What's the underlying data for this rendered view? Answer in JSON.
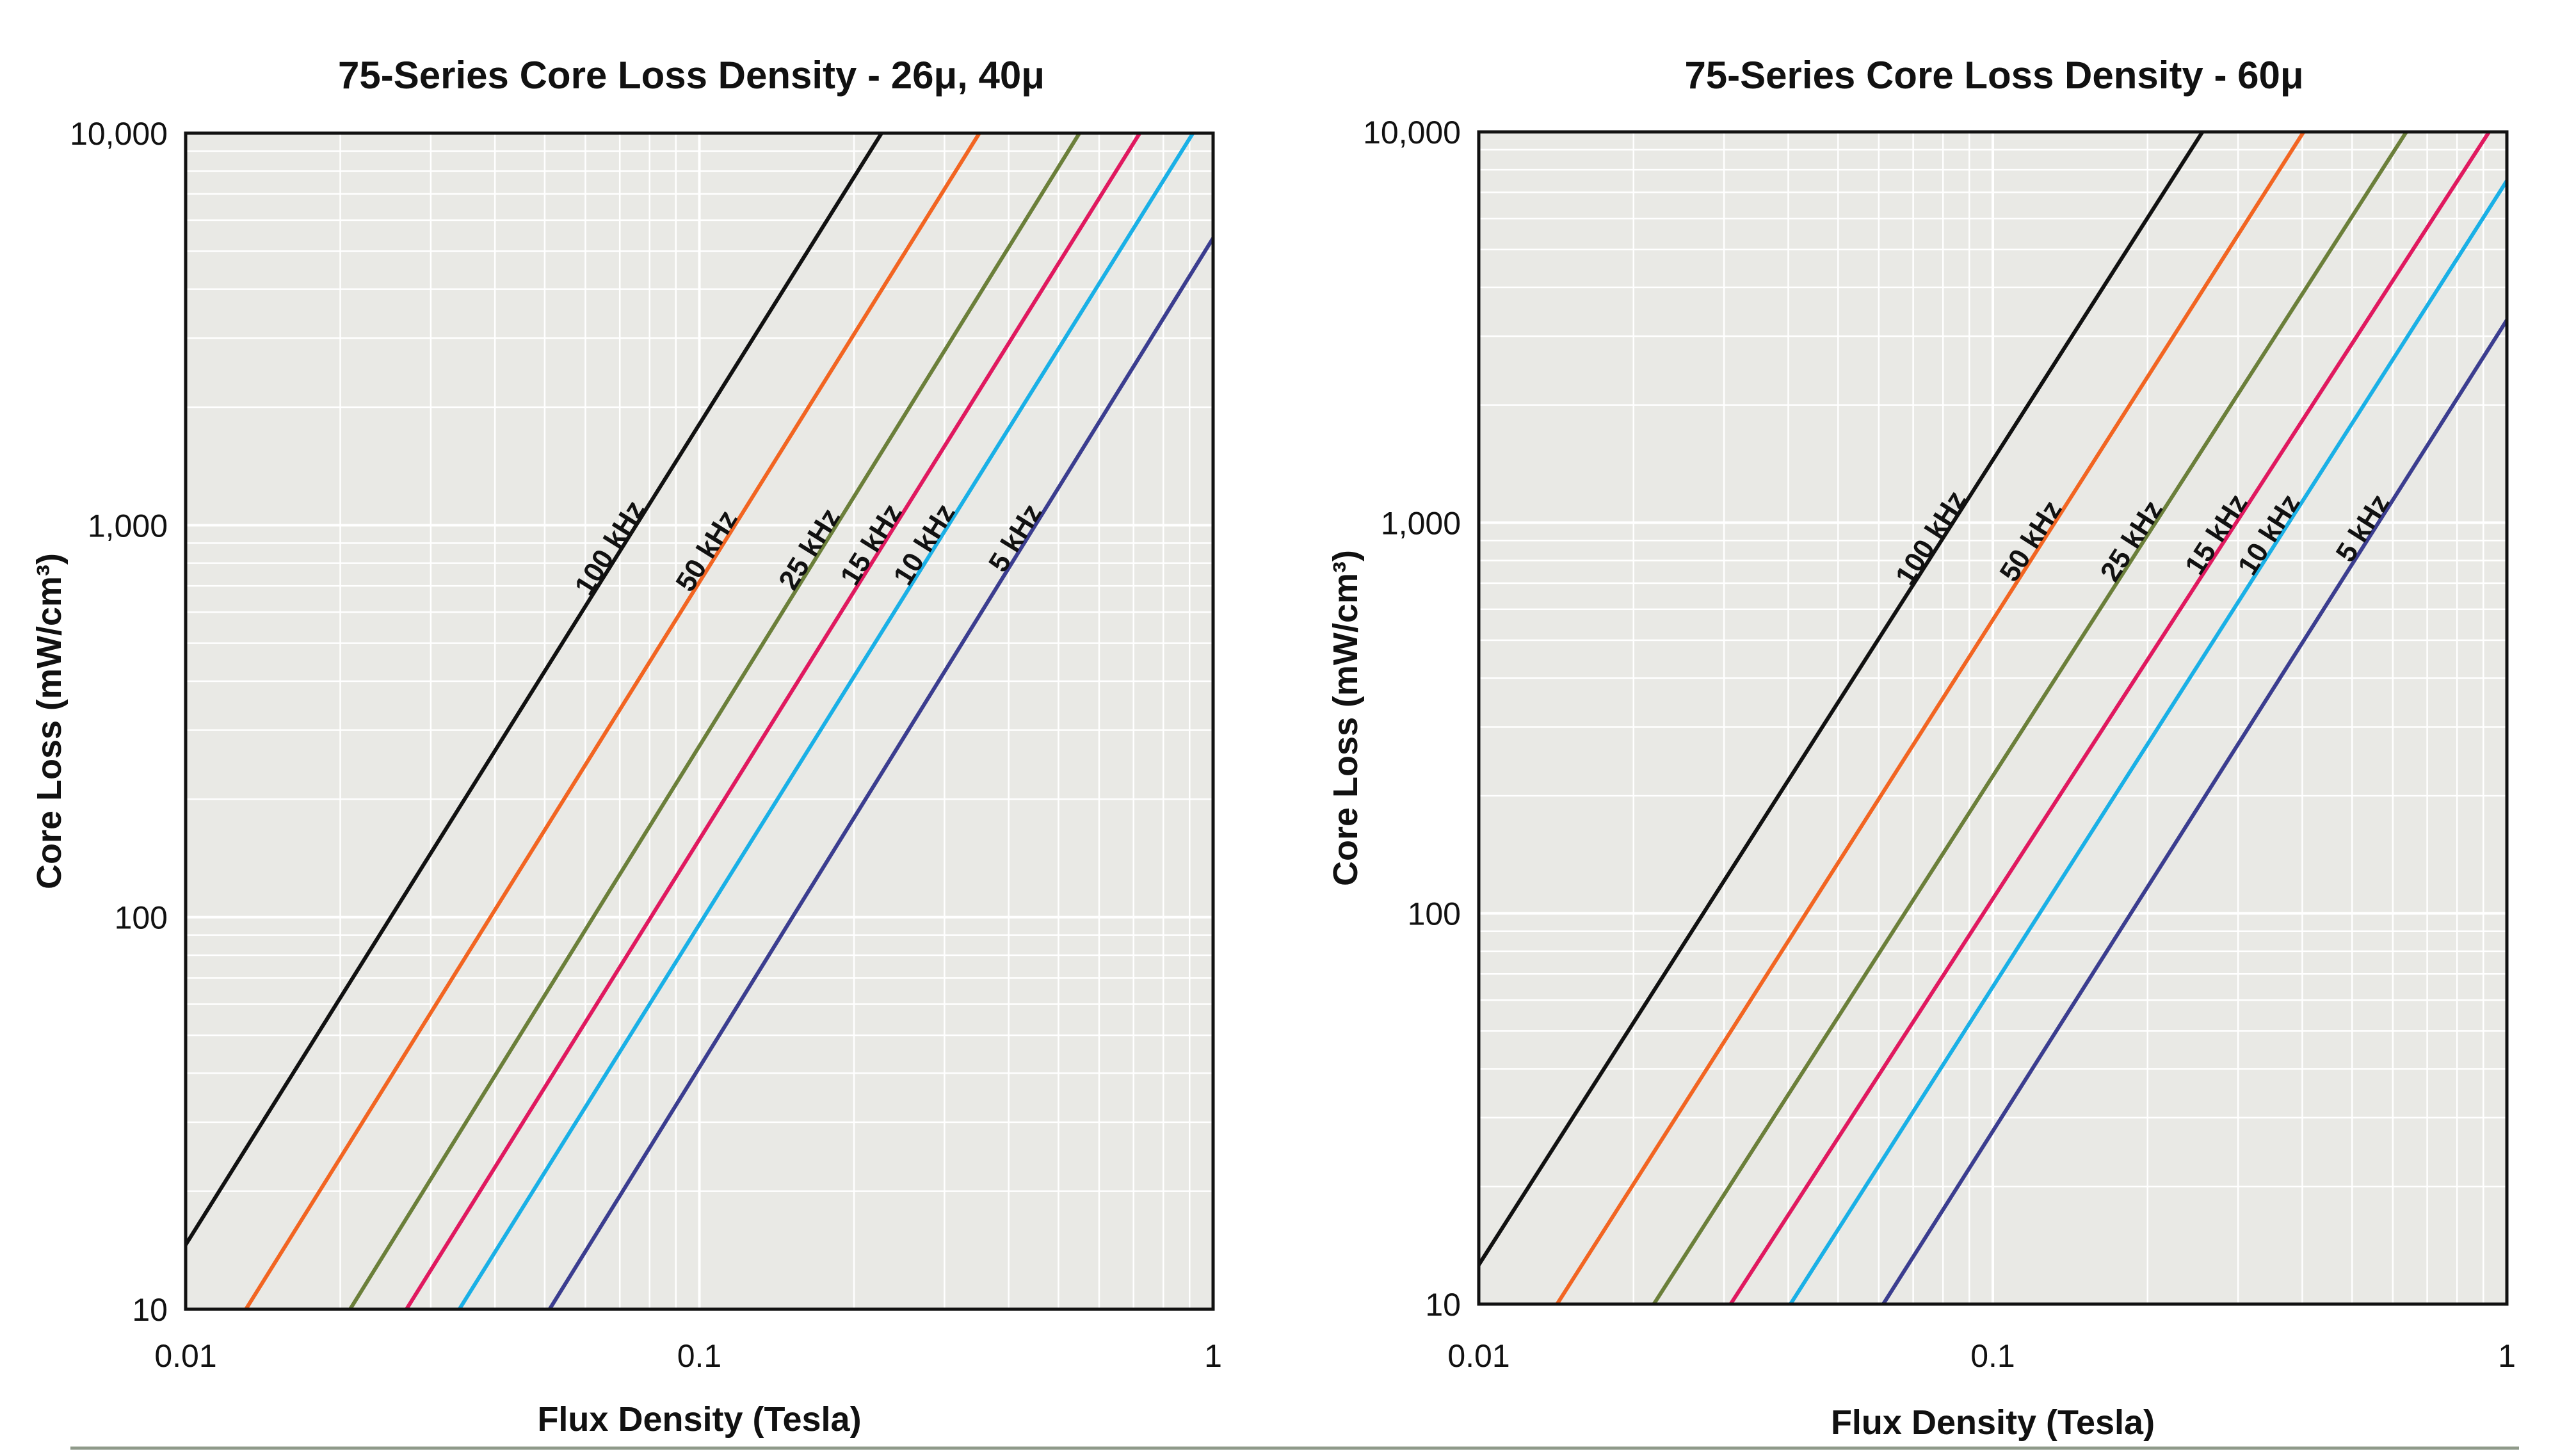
{
  "chart_data": [
    {
      "type": "line",
      "title": "75-Series Core Loss Density - 26μ, 40μ",
      "xlabel": "Flux Density (Tesla)",
      "ylabel": "Core Loss (mW/cm³)",
      "x_scale": "log",
      "y_scale": "log",
      "xlim": [
        0.01,
        1
      ],
      "ylim": [
        10,
        10000
      ],
      "x_ticks": [
        "0.01",
        "0.1",
        "1"
      ],
      "y_ticks": [
        "10",
        "100",
        "1,000",
        "10,000"
      ],
      "grid": true,
      "series": [
        {
          "name": "100 kHz",
          "color": "#111111",
          "points": [
            [
              0.01,
              14.6
            ],
            [
              0.2263,
              10000
            ]
          ]
        },
        {
          "name": "50 kHz",
          "color": "#f26522",
          "points": [
            [
              0.0131,
              10
            ],
            [
              0.3508,
              10000
            ]
          ]
        },
        {
          "name": "25 kHz",
          "color": "#6b7f3a",
          "points": [
            [
              0.0209,
              10
            ],
            [
              0.5493,
              10000
            ]
          ]
        },
        {
          "name": "15 kHz",
          "color": "#e0195f",
          "points": [
            [
              0.0269,
              10
            ],
            [
              0.7197,
              10000
            ]
          ]
        },
        {
          "name": "10 kHz",
          "color": "#1ab0e6",
          "points": [
            [
              0.0341,
              10
            ],
            [
              0.9137,
              10000
            ]
          ]
        },
        {
          "name": "5 kHz",
          "color": "#3b3d8f",
          "points": [
            [
              0.0511,
              10
            ],
            [
              1,
              5400
            ]
          ]
        }
      ]
    },
    {
      "type": "line",
      "title": "75-Series Core Loss Density - 60μ",
      "xlabel": "Flux Density (Tesla)",
      "ylabel": "Core Loss (mW/cm³)",
      "x_scale": "log",
      "y_scale": "log",
      "xlim": [
        0.01,
        1
      ],
      "ylim": [
        10,
        10000
      ],
      "x_ticks": [
        "0.01",
        "0.1",
        "1"
      ],
      "y_ticks": [
        "10",
        "100",
        "1,000",
        "10,000"
      ],
      "grid": true,
      "series": [
        {
          "name": "100 kHz",
          "color": "#111111",
          "points": [
            [
              0.01,
              12.6
            ],
            [
              0.2558,
              10000
            ]
          ]
        },
        {
          "name": "50 kHz",
          "color": "#f26522",
          "points": [
            [
              0.0142,
              10
            ],
            [
              0.4024,
              10000
            ]
          ]
        },
        {
          "name": "25 kHz",
          "color": "#6b7f3a",
          "points": [
            [
              0.0219,
              10
            ],
            [
              0.6375,
              10000
            ]
          ]
        },
        {
          "name": "15 kHz",
          "color": "#e0195f",
          "points": [
            [
              0.0309,
              10
            ],
            [
              0.9233,
              10000
            ]
          ]
        },
        {
          "name": "10 kHz",
          "color": "#1ab0e6",
          "points": [
            [
              0.0404,
              10
            ],
            [
              1,
              7500
            ]
          ]
        },
        {
          "name": "5 kHz",
          "color": "#3b3d8f",
          "points": [
            [
              0.0612,
              10
            ],
            [
              1,
              3300
            ]
          ]
        }
      ]
    }
  ]
}
